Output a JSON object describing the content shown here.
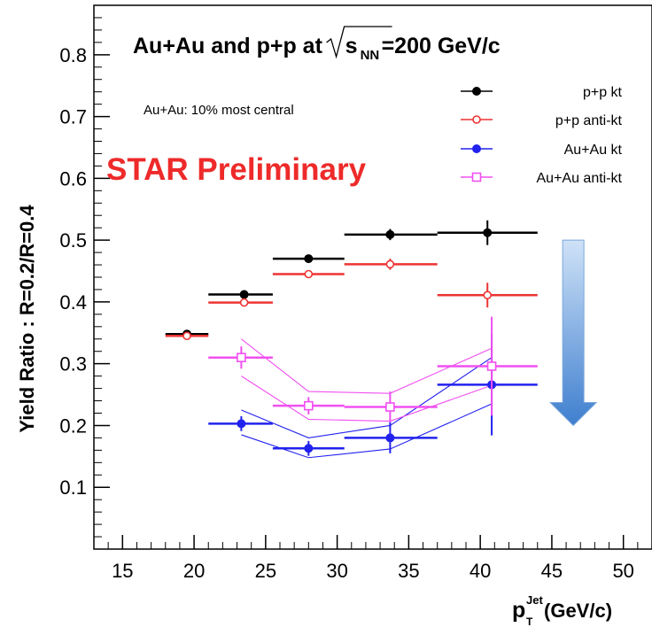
{
  "chart_data": {
    "type": "scatter",
    "title": {
      "pre": "Au+Au and p+p at ",
      "radical_s": "s",
      "radical_sub": "NN",
      "post": "=200 GeV/c"
    },
    "annotation": "Au+Au: 10% most central",
    "watermark": "STAR Preliminary",
    "xlabel": {
      "base": "p",
      "sub": "T",
      "sup": "Jet",
      "units": " (GeV/c)"
    },
    "ylabel": "Yield Ratio : R=0.2/R=0.4",
    "xlim": [
      13,
      52
    ],
    "ylim": [
      0,
      0.88
    ],
    "x_ticks": [
      15,
      20,
      25,
      30,
      35,
      40,
      45,
      50
    ],
    "y_ticks": [
      0.1,
      0.2,
      0.3,
      0.4,
      0.5,
      0.6,
      0.7,
      0.8
    ],
    "legend_position": "top-right",
    "series": [
      {
        "name": "p+p kt",
        "color": "#000000",
        "marker": "filled-circle",
        "points": [
          {
            "x": 19.5,
            "xlo": 18,
            "xhi": 21,
            "y": 0.348,
            "yerr": 0.005
          },
          {
            "x": 23.5,
            "xlo": 21,
            "xhi": 25.5,
            "y": 0.412,
            "yerr": 0.006
          },
          {
            "x": 28,
            "xlo": 25.5,
            "xhi": 30.5,
            "y": 0.47,
            "yerr": 0.005
          },
          {
            "x": 33.7,
            "xlo": 30.5,
            "xhi": 37,
            "y": 0.509,
            "yerr": 0.009
          },
          {
            "x": 40.5,
            "xlo": 37,
            "xhi": 44,
            "y": 0.512,
            "yerr": 0.02
          }
        ]
      },
      {
        "name": "p+p anti-kt",
        "color": "#ee3333",
        "marker": "open-circle",
        "points": [
          {
            "x": 19.5,
            "xlo": 18,
            "xhi": 21,
            "y": 0.345,
            "yerr": 0.005
          },
          {
            "x": 23.5,
            "xlo": 21,
            "xhi": 25.5,
            "y": 0.399,
            "yerr": 0.006
          },
          {
            "x": 28,
            "xlo": 25.5,
            "xhi": 30.5,
            "y": 0.445,
            "yerr": 0.006
          },
          {
            "x": 33.7,
            "xlo": 30.5,
            "xhi": 37,
            "y": 0.461,
            "yerr": 0.009
          },
          {
            "x": 40.5,
            "xlo": 37,
            "xhi": 44,
            "y": 0.411,
            "yerr": 0.02
          }
        ]
      },
      {
        "name": "Au+Au kt",
        "color": "#2222ee",
        "marker": "filled-circle",
        "points": [
          {
            "x": 23.3,
            "xlo": 21,
            "xhi": 25.5,
            "y": 0.203,
            "yerr": 0.012
          },
          {
            "x": 28,
            "xlo": 25.5,
            "xhi": 30.5,
            "y": 0.163,
            "yerr": 0.012
          },
          {
            "x": 33.7,
            "xlo": 30.5,
            "xhi": 37,
            "y": 0.18,
            "yerr": 0.025
          },
          {
            "x": 40.8,
            "xlo": 37,
            "xhi": 44,
            "y": 0.266,
            "yerr": 0.082
          }
        ],
        "band_upper": [
          0.225,
          0.18,
          0.2,
          0.31
        ],
        "band_lower": [
          0.185,
          0.148,
          0.162,
          0.235
        ]
      },
      {
        "name": "Au+Au anti-kt",
        "color": "#f050f0",
        "marker": "open-square",
        "points": [
          {
            "x": 23.3,
            "xlo": 21,
            "xhi": 25.5,
            "y": 0.31,
            "yerr": 0.018
          },
          {
            "x": 28,
            "xlo": 25.5,
            "xhi": 30.5,
            "y": 0.232,
            "yerr": 0.014
          },
          {
            "x": 33.7,
            "xlo": 30.5,
            "xhi": 37,
            "y": 0.23,
            "yerr": 0.025
          },
          {
            "x": 40.8,
            "xlo": 37,
            "xhi": 44,
            "y": 0.296,
            "yerr": 0.08
          }
        ],
        "band_upper": [
          0.34,
          0.255,
          0.252,
          0.325
        ],
        "band_lower": [
          0.28,
          0.21,
          0.207,
          0.265
        ]
      }
    ],
    "arrow": {
      "color": "#4f8fd6",
      "x": 46.5,
      "y_from": 0.5,
      "y_to": 0.2
    }
  }
}
